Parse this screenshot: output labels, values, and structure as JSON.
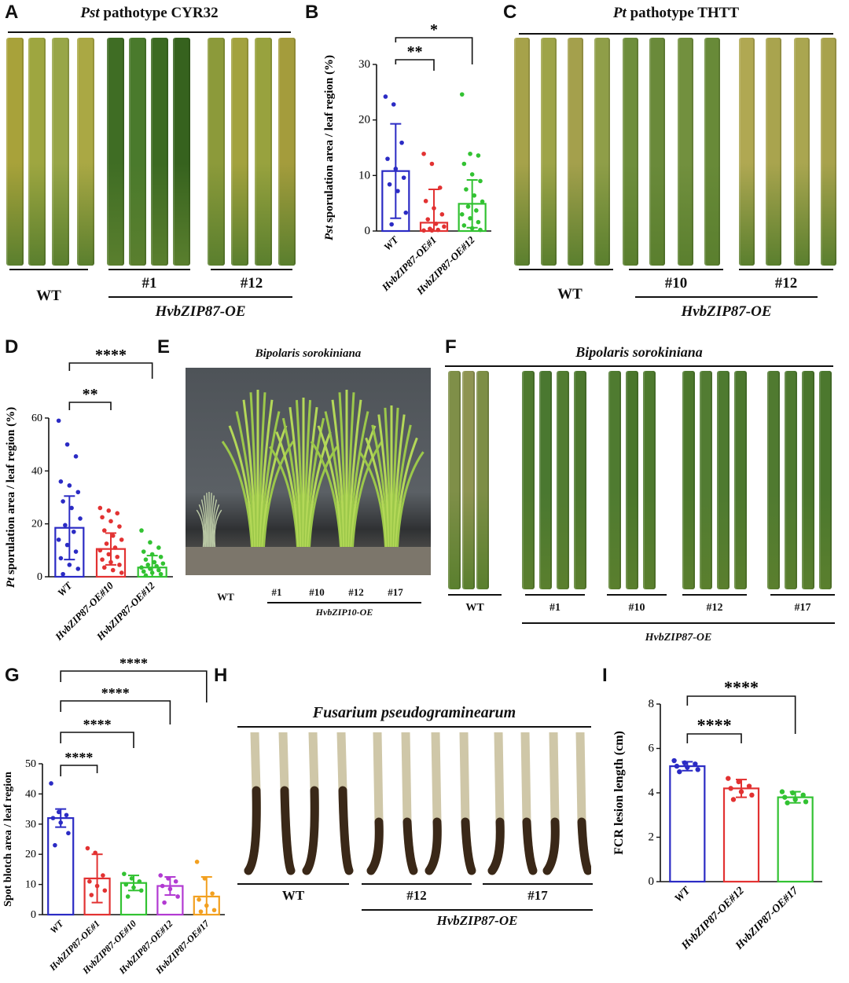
{
  "panels": {
    "A": {
      "letter": "A",
      "title_italic": "Pst",
      "title_rest": " pathotype CYR32",
      "groups": [
        "WT",
        "#1",
        "#12"
      ],
      "line_label": "HvbZIP87-OE",
      "leaf_colors": [
        "#a8a23a",
        "#9ea640",
        "#98a648",
        "#aaa844",
        "#3f6d24",
        "#4a7a2c",
        "#3c6a22",
        "#36621e",
        "#8c9a3a",
        "#a3a23e",
        "#98a23e",
        "#a49c3c"
      ]
    },
    "C": {
      "letter": "C",
      "title_italic": "Pt",
      "title_rest": " pathotype THTT",
      "groups": [
        "WT",
        "#10",
        "#12"
      ],
      "line_label": "HvbZIP87-OE",
      "leaf_colors": [
        "#a6a24a",
        "#9ea448",
        "#a4a04c",
        "#8f9e48",
        "#6e8e3c",
        "#6a8a3a",
        "#72903e",
        "#688a38",
        "#b0a852",
        "#a9a44e",
        "#aaa650",
        "#a8a24c"
      ]
    },
    "E": {
      "letter": "E",
      "title": "Bipolaris sorokiniana",
      "groups": [
        "WT",
        "#1",
        "#10",
        "#12",
        "#17"
      ],
      "line_label": "HvbZIP10-OE"
    },
    "F": {
      "letter": "F",
      "title": "Bipolaris sorokiniana",
      "groups": [
        "WT",
        "#1",
        "#10",
        "#12",
        "#17"
      ],
      "line_label": "HvbZIP87-OE",
      "leaf_colors": [
        "#7f8f48",
        "#8e9452",
        "#7d8e46",
        "#4e7a2e",
        "#4a7830",
        "#527c32",
        "#4c782e",
        "#4f7b30",
        "#4a762c",
        "#4e7a2e",
        "#4c782c",
        "#527c32",
        "#4e7a30",
        "#4c782e",
        "#507a30",
        "#4e7a30",
        "#4a762c",
        "#4c782e"
      ]
    },
    "H": {
      "letter": "H",
      "title": "Fusarium pseudograminearum",
      "groups": [
        "WT",
        "#12",
        "#17"
      ],
      "line_label": "HvbZIP87-OE"
    }
  },
  "chart_data": [
    {
      "panel": "B",
      "type": "bar",
      "ylabel_italic": "Pst",
      "ylabel_rest": " sporulation area / leaf region (%)",
      "categories": [
        "WT",
        "HvbZIP87-OE#1",
        "HvbZIP87-OE#12"
      ],
      "values": [
        10.8,
        1.5,
        4.9
      ],
      "errors": [
        8.5,
        6.0,
        4.3
      ],
      "colors": [
        "#2b2bc4",
        "#e23232",
        "#32c232"
      ],
      "ylim": [
        0,
        30
      ],
      "yticks": [
        "0",
        "10",
        "20",
        "30"
      ],
      "points": [
        [
          24.2,
          22.8,
          15.9,
          13.0,
          11.2,
          9.6,
          8.4,
          7.2,
          3.3,
          1.2
        ],
        [
          13.9,
          12.1,
          7.8,
          5.4,
          4.1,
          3.0,
          2.1,
          1.3,
          0.8,
          0.4,
          0.2,
          0.1,
          0.1
        ],
        [
          24.6,
          13.9,
          13.6,
          12.1,
          10.2,
          9.0,
          7.5,
          6.4,
          5.3,
          4.4,
          3.7,
          3.0,
          2.3,
          1.6,
          1.0,
          0.5,
          0.2
        ]
      ],
      "significance": [
        {
          "from": 0,
          "to": 1,
          "label": "**"
        },
        {
          "from": 0,
          "to": 2,
          "label": "*"
        }
      ]
    },
    {
      "panel": "D",
      "type": "bar",
      "ylabel_italic": "Pt",
      "ylabel_rest": " sporulation area / leaf region (%)",
      "categories": [
        "WT",
        "HvbZIP87-OE#10",
        "HvbZIP87-OE#12"
      ],
      "values": [
        18.5,
        10.5,
        3.5
      ],
      "errors": [
        12.0,
        6.0,
        4.5
      ],
      "colors": [
        "#2b2bc4",
        "#e23232",
        "#32c232"
      ],
      "ylim": [
        0,
        60
      ],
      "yticks": [
        "0",
        "20",
        "40",
        "60"
      ],
      "points": [
        [
          59.0,
          50.0,
          45.5,
          36.0,
          34.5,
          32.0,
          28.5,
          26.0,
          22.0,
          19.5,
          17.0,
          14.0,
          12.0,
          9.5,
          7.0,
          4.5,
          3.0,
          1.0
        ],
        [
          26.0,
          25.0,
          24.0,
          22.5,
          21.0,
          19.0,
          17.5,
          15.5,
          14.0,
          12.5,
          11.0,
          10.0,
          8.5,
          7.5,
          6.5,
          5.5,
          4.5,
          3.5,
          2.5,
          1.5
        ],
        [
          17.5,
          13.0,
          11.0,
          9.5,
          8.5,
          7.5,
          6.5,
          5.5,
          5.0,
          4.5,
          4.0,
          3.5,
          3.0,
          2.5,
          2.0,
          1.5,
          1.0,
          0.5
        ]
      ],
      "significance": [
        {
          "from": 0,
          "to": 1,
          "label": "**"
        },
        {
          "from": 0,
          "to": 2,
          "label": "****"
        }
      ]
    },
    {
      "panel": "G",
      "type": "bar",
      "ylabel": "Spot blotch area / leaf region",
      "categories": [
        "WT",
        "HvbZIP87-OE#1",
        "HvbZIP87-OE#10",
        "HvbZIP87-OE#12",
        "HvbZIP87-OE#17"
      ],
      "values": [
        32.0,
        12.0,
        10.5,
        9.5,
        6.0
      ],
      "errors": [
        3.0,
        8.0,
        2.5,
        3.0,
        6.5
      ],
      "colors": [
        "#2b2bc4",
        "#e23232",
        "#32c232",
        "#b23ad2",
        "#f2a020"
      ],
      "ylim": [
        0,
        50
      ],
      "yticks": [
        "0",
        "10",
        "20",
        "30",
        "40",
        "50"
      ],
      "points": [
        [
          43.5,
          34.0,
          33.0,
          32.0,
          30.5,
          27.0,
          23.0
        ],
        [
          22.0,
          20.5,
          13.0,
          11.0,
          9.5,
          8.0,
          6.5
        ],
        [
          13.5,
          12.0,
          11.0,
          10.0,
          9.0,
          8.0,
          6.0
        ],
        [
          13.0,
          12.0,
          11.0,
          9.5,
          8.5,
          6.0,
          4.0
        ],
        [
          17.5,
          12.0,
          7.0,
          5.0,
          3.0,
          1.5,
          1.0
        ]
      ],
      "significance": [
        {
          "from": 0,
          "to": 1,
          "label": "****"
        },
        {
          "from": 0,
          "to": 2,
          "label": "****"
        },
        {
          "from": 0,
          "to": 3,
          "label": "****"
        },
        {
          "from": 0,
          "to": 4,
          "label": "****"
        }
      ]
    },
    {
      "panel": "I",
      "type": "bar",
      "ylabel": "FCR lesion length (cm)",
      "categories": [
        "WT",
        "HvbZIP87-OE#12",
        "HvbZIP87-OE#17"
      ],
      "values": [
        5.2,
        4.2,
        3.8
      ],
      "errors": [
        0.2,
        0.4,
        0.25
      ],
      "colors": [
        "#2b2bc4",
        "#e23232",
        "#32c232"
      ],
      "ylim": [
        0,
        8
      ],
      "yticks": [
        "0",
        "2",
        "4",
        "6",
        "8"
      ],
      "points": [
        [
          5.45,
          5.35,
          5.3,
          5.2,
          5.15,
          5.05,
          4.95
        ],
        [
          4.65,
          4.5,
          4.3,
          4.2,
          4.05,
          3.9,
          3.7
        ],
        [
          4.05,
          4.0,
          3.9,
          3.8,
          3.7,
          3.6,
          3.55
        ]
      ],
      "significance": [
        {
          "from": 0,
          "to": 1,
          "label": "****"
        },
        {
          "from": 0,
          "to": 2,
          "label": "****"
        }
      ]
    }
  ]
}
